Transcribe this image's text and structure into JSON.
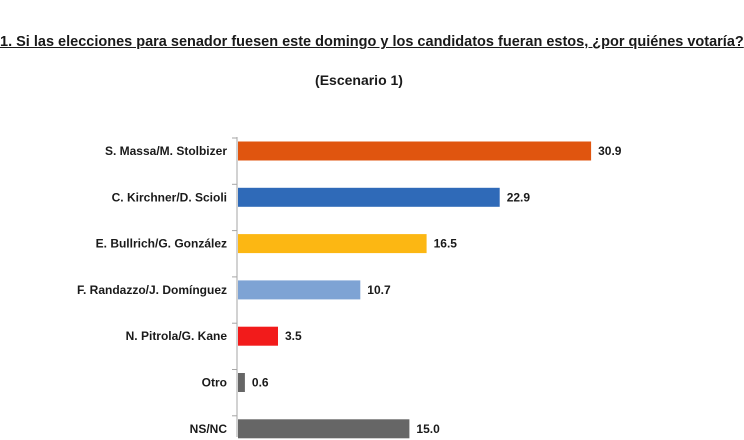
{
  "chart_data": {
    "type": "bar",
    "orientation": "horizontal",
    "title": "1. Si las elecciones para senador fuesen este domingo y los candidatos fueran estos, ¿por quiénes votaría?",
    "subtitle": "(Escenario 1)",
    "categories": [
      "S. Massa/M. Stolbizer",
      "C. Kirchner/D. Scioli",
      "E. Bullrich/G. González",
      "F. Randazzo/J. Domínguez",
      "N. Pitrola/G. Kane",
      "Otro",
      "NS/NC"
    ],
    "values": [
      30.9,
      22.9,
      16.5,
      10.7,
      3.5,
      0.6,
      15.0
    ],
    "value_labels": [
      "30.9",
      "22.9",
      "16.5",
      "10.7",
      "3.5",
      "0.6",
      "15.0"
    ],
    "colors": [
      "#e0550f",
      "#2f6ab8",
      "#fcb713",
      "#7ea3d4",
      "#f21b1b",
      "#666666",
      "#666666"
    ],
    "xlim": [
      0,
      35
    ],
    "axis_color": "#a6a6a6",
    "grid": false,
    "xlabel": "",
    "ylabel": ""
  }
}
